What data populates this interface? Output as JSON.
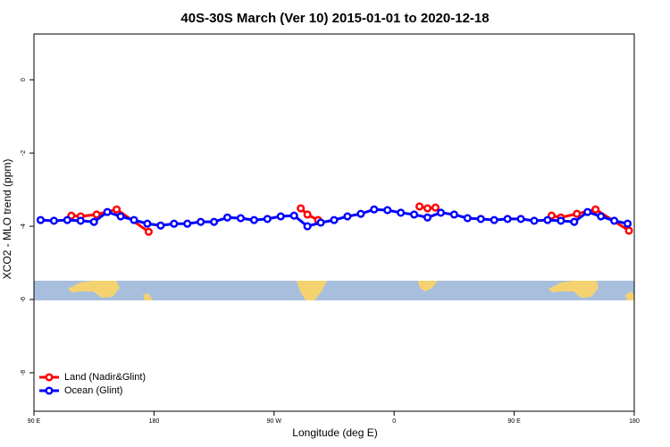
{
  "chart_data": {
    "type": "line",
    "title": "40S-30S March (Ver 10)   2015-01-01 to 2020-12-18",
    "xlabel": "Longitude (deg E)",
    "ylabel": "XCO2 - MLO trend (ppm)",
    "xlim": [
      90,
      540
    ],
    "ylim": [
      -9.05,
      1.25
    ],
    "xticks": [
      {
        "value": 90,
        "label": "90 E"
      },
      {
        "value": 180,
        "label": "180"
      },
      {
        "value": 270,
        "label": "90 W"
      },
      {
        "value": 360,
        "label": "0"
      },
      {
        "value": 450,
        "label": "90 E"
      },
      {
        "value": 540,
        "label": "180"
      }
    ],
    "yticks": [
      0,
      -2,
      -4,
      -6,
      -8
    ],
    "legend": "bottom-left",
    "series": [
      {
        "name": "Land (Nadir&Glint)",
        "color": "#ff0000",
        "x": [
          118,
          125,
          137,
          152,
          176,
          null,
          290,
          295,
          303,
          null,
          379,
          385,
          391,
          null,
          478,
          485,
          497,
          511,
          536
        ],
        "values": [
          -3.71,
          -3.73,
          -3.68,
          -3.54,
          -4.15,
          null,
          -3.51,
          -3.68,
          -3.83,
          null,
          -3.46,
          -3.51,
          -3.49,
          null,
          -3.71,
          -3.76,
          -3.66,
          -3.54,
          -4.12
        ]
      },
      {
        "name": "Ocean (Glint)",
        "color": "#0000ff",
        "x": [
          95,
          105,
          115,
          125,
          135,
          145,
          155,
          165,
          175,
          185,
          195,
          205,
          215,
          225,
          235,
          245,
          255,
          265,
          275,
          285,
          295,
          305,
          315,
          325,
          335,
          345,
          355,
          365,
          375,
          385,
          395,
          405,
          415,
          425,
          435,
          445,
          455,
          465,
          475,
          485,
          495,
          505,
          515,
          525,
          535
        ],
        "values": [
          -3.83,
          -3.85,
          -3.83,
          -3.85,
          -3.88,
          -3.61,
          -3.73,
          -3.83,
          -3.93,
          -3.98,
          -3.93,
          -3.93,
          -3.88,
          -3.88,
          -3.76,
          -3.78,
          -3.83,
          -3.8,
          -3.73,
          -3.71,
          -4.0,
          -3.9,
          -3.83,
          -3.73,
          -3.66,
          -3.54,
          -3.56,
          -3.63,
          -3.68,
          -3.76,
          -3.63,
          -3.68,
          -3.78,
          -3.8,
          -3.83,
          -3.8,
          -3.8,
          -3.85,
          -3.83,
          -3.85,
          -3.88,
          -3.61,
          -3.73,
          -3.85,
          -3.93
        ]
      }
    ]
  }
}
